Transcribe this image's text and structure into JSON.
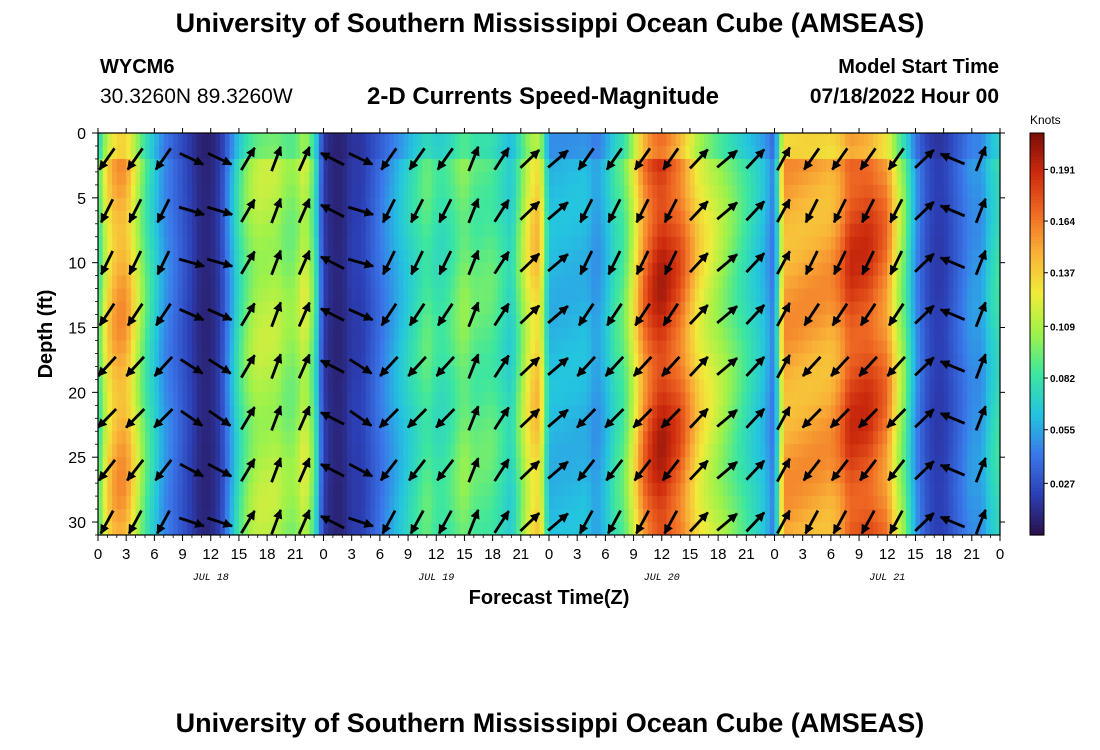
{
  "header": {
    "title": "University of Southern Mississippi Ocean Cube (AMSEAS)",
    "station": "WYCM6",
    "coords": "30.3260N  89.3260W",
    "plot_title": "2-D Currents Speed-Magnitude",
    "model_start_label": "Model Start Time",
    "model_start_value": "07/18/2022 Hour 00"
  },
  "footer": {
    "title": "University of Southern Mississippi Ocean Cube (AMSEAS)"
  },
  "chart_data": {
    "type": "heatmap",
    "xlabel": "Forecast Time(Z)",
    "ylabel": "Depth (ft)",
    "x_tick_labels": [
      "0",
      "3",
      "6",
      "9",
      "12",
      "15",
      "18",
      "21",
      "0",
      "3",
      "6",
      "9",
      "12",
      "15",
      "18",
      "21",
      "0",
      "3",
      "6",
      "9",
      "12",
      "15",
      "18",
      "21",
      "0",
      "3",
      "6",
      "9",
      "12",
      "15",
      "18",
      "21",
      "0"
    ],
    "day_labels": [
      {
        "label": "JUL 18",
        "hour": 12
      },
      {
        "label": "JUL 19",
        "hour": 36
      },
      {
        "label": "JUL 20",
        "hour": 60
      },
      {
        "label": "JUL 21",
        "hour": 84
      }
    ],
    "x_range_hours": [
      0,
      96
    ],
    "y_range_ft": [
      0,
      31
    ],
    "y_ticks": [
      0,
      5,
      10,
      15,
      20,
      25,
      30
    ],
    "y_reversed": true,
    "colorbar": {
      "title": "Knots",
      "tick_labels": [
        "0.191",
        "0.164",
        "0.137",
        "0.109",
        "0.082",
        "0.055",
        "0.027"
      ],
      "tick_values": [
        0.191,
        0.164,
        0.137,
        0.109,
        0.082,
        0.055,
        0.027
      ],
      "range": [
        0.0,
        0.21
      ],
      "colors": [
        "#2a0f47",
        "#2c3fb5",
        "#3a78ea",
        "#24c4e0",
        "#3ce6a0",
        "#9df24a",
        "#f0ec3a",
        "#f9b238",
        "#f06a24",
        "#cd2a0d",
        "#7a0d0a"
      ]
    },
    "speed_profile": {
      "hours": [
        0,
        1,
        2,
        3,
        4,
        5,
        6,
        7,
        8,
        9,
        10,
        11,
        12,
        13,
        14,
        15,
        16,
        17,
        18,
        19,
        20,
        21,
        22,
        23,
        24,
        25,
        26,
        27,
        28,
        29,
        30,
        31,
        32,
        33,
        34,
        35,
        36,
        37,
        38,
        39,
        40,
        41,
        42,
        43,
        44,
        45,
        46,
        47,
        48,
        49,
        50,
        51,
        52,
        53,
        54,
        55,
        56,
        57,
        58,
        59,
        60,
        61,
        62,
        63,
        64,
        65,
        66,
        67,
        68,
        69,
        70,
        71,
        72,
        73,
        74,
        75,
        76,
        77,
        78,
        79,
        80,
        81,
        82,
        83,
        84,
        85,
        86,
        87,
        88,
        89,
        90,
        91,
        92,
        93,
        94,
        95,
        96
      ],
      "speed_knots": [
        0.08,
        0.13,
        0.15,
        0.15,
        0.12,
        0.09,
        0.07,
        0.05,
        0.04,
        0.03,
        0.02,
        0.01,
        0.01,
        0.02,
        0.05,
        0.08,
        0.1,
        0.11,
        0.11,
        0.11,
        0.1,
        0.1,
        0.12,
        0.09,
        0.02,
        0.01,
        0.01,
        0.02,
        0.02,
        0.03,
        0.04,
        0.05,
        0.06,
        0.07,
        0.08,
        0.09,
        0.08,
        0.08,
        0.09,
        0.1,
        0.09,
        0.09,
        0.09,
        0.08,
        0.07,
        0.1,
        0.13,
        0.14,
        0.06,
        0.06,
        0.06,
        0.06,
        0.06,
        0.05,
        0.06,
        0.08,
        0.09,
        0.12,
        0.16,
        0.18,
        0.19,
        0.18,
        0.17,
        0.15,
        0.13,
        0.12,
        0.11,
        0.1,
        0.09,
        0.08,
        0.07,
        0.06,
        0.04,
        0.15,
        0.15,
        0.15,
        0.15,
        0.15,
        0.15,
        0.16,
        0.18,
        0.18,
        0.18,
        0.17,
        0.16,
        0.12,
        0.09,
        0.05,
        0.03,
        0.02,
        0.02,
        0.03,
        0.04,
        0.05,
        0.05,
        0.07,
        0.08
      ]
    },
    "arrow_times_hours": [
      0,
      3,
      6,
      9,
      12,
      15,
      18,
      21,
      24,
      27,
      30,
      33,
      36,
      39,
      42,
      45,
      48,
      51,
      54,
      57,
      60,
      63,
      66,
      69,
      72,
      75,
      78,
      81,
      84,
      87,
      90,
      93,
      96
    ]
  }
}
